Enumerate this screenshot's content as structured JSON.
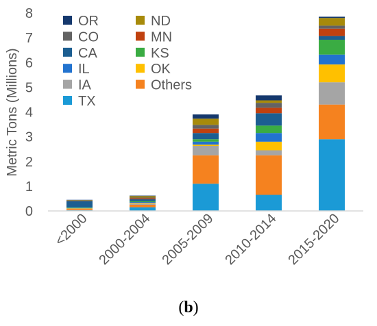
{
  "chart_data": {
    "type": "bar",
    "stacked": true,
    "ylabel": "Metric Tons (Millions)",
    "ylim": [
      0,
      8
    ],
    "yticks": [
      "0",
      "1",
      "2",
      "3",
      "4",
      "5",
      "6",
      "7",
      "8"
    ],
    "grid": false,
    "legend_position": "top-left, inside plot, two columns",
    "categories": [
      "<2000",
      "2000-2004",
      "2005-2009",
      "2010-2014",
      "2015-2020"
    ],
    "series": [
      {
        "name": "TX",
        "color": "#1b9ad6",
        "values": [
          0.03,
          0.15,
          1.1,
          0.65,
          2.9
        ]
      },
      {
        "name": "Others",
        "color": "#f5821f",
        "values": [
          0.05,
          0.1,
          1.15,
          1.6,
          1.4
        ]
      },
      {
        "name": "IA",
        "color": "#a5a5a5",
        "values": [
          0.02,
          0.05,
          0.38,
          0.2,
          0.9
        ]
      },
      {
        "name": "OK",
        "color": "#ffc000",
        "values": [
          0.01,
          0.03,
          0.05,
          0.35,
          0.72
        ]
      },
      {
        "name": "IL",
        "color": "#2273cf",
        "values": [
          0.02,
          0.03,
          0.12,
          0.35,
          0.4
        ]
      },
      {
        "name": "KS",
        "color": "#3aac43",
        "values": [
          0.02,
          0.03,
          0.1,
          0.3,
          0.6
        ]
      },
      {
        "name": "CA",
        "color": "#1c5e91",
        "values": [
          0.25,
          0.08,
          0.25,
          0.5,
          0.15
        ]
      },
      {
        "name": "MN",
        "color": "#c0410f",
        "values": [
          0.01,
          0.04,
          0.18,
          0.22,
          0.3
        ]
      },
      {
        "name": "CO",
        "color": "#636363",
        "values": [
          0.01,
          0.03,
          0.15,
          0.2,
          0.12
        ]
      },
      {
        "name": "ND",
        "color": "#a78a0a",
        "values": [
          0.02,
          0.06,
          0.25,
          0.1,
          0.31
        ]
      },
      {
        "name": "OR",
        "color": "#15386d",
        "values": [
          0.01,
          0.02,
          0.17,
          0.2,
          0.05
        ]
      }
    ],
    "legend_order": [
      [
        "OR",
        "CO",
        "CA",
        "IL",
        "IA",
        "TX"
      ],
      [
        "ND",
        "MN",
        "KS",
        "OK",
        "Others"
      ]
    ]
  },
  "caption": {
    "open": "(",
    "letter": "b",
    "close": ")"
  }
}
